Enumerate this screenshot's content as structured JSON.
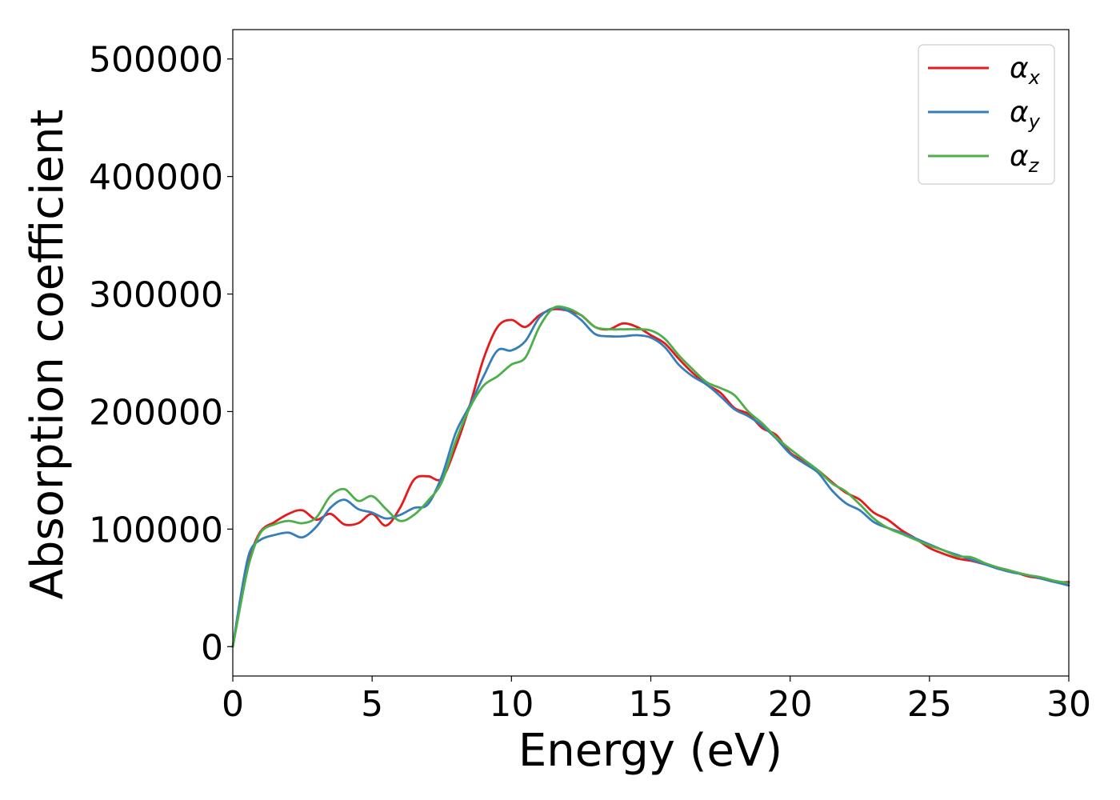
{
  "chart_data": {
    "type": "line",
    "title": "",
    "xlabel": "Energy (eV)",
    "ylabel": "Absorption coefficient",
    "xlim": [
      0,
      30
    ],
    "ylim": [
      -25000,
      525000
    ],
    "xticks": [
      0,
      5,
      10,
      15,
      20,
      25,
      30
    ],
    "yticks": [
      0,
      100000,
      200000,
      300000,
      400000,
      500000
    ],
    "xtick_labels": [
      "0",
      "5",
      "10",
      "15",
      "20",
      "25",
      "30"
    ],
    "ytick_labels": [
      "0",
      "100000",
      "200000",
      "300000",
      "400000",
      "500000"
    ],
    "grid": false,
    "legend_position": "top-right",
    "series": [
      {
        "name_base": "α",
        "name_sub": "x",
        "color": "#e41a1c",
        "x": [
          0,
          0.3,
          0.6,
          1.0,
          1.5,
          2.0,
          2.5,
          3.0,
          3.5,
          4.0,
          4.5,
          5.0,
          5.5,
          6.0,
          6.5,
          7.0,
          7.5,
          8.0,
          8.5,
          9.0,
          9.5,
          10.0,
          10.5,
          11.0,
          11.5,
          12.0,
          12.5,
          13.0,
          13.5,
          14.0,
          14.5,
          15.0,
          15.5,
          16.0,
          16.5,
          17.0,
          17.5,
          18.0,
          18.5,
          19.0,
          19.5,
          20.0,
          20.5,
          21.0,
          21.5,
          22.0,
          22.5,
          23.0,
          23.5,
          24.0,
          24.5,
          25.0,
          25.5,
          26.0,
          26.5,
          27.0,
          27.5,
          28.0,
          28.5,
          29.0,
          29.5,
          30.0
        ],
        "values": [
          0,
          40000,
          75000,
          98000,
          106000,
          113000,
          116000,
          108000,
          113000,
          104000,
          105000,
          113000,
          103000,
          118000,
          142000,
          145000,
          143000,
          170000,
          205000,
          245000,
          272000,
          278000,
          272000,
          282000,
          287000,
          286000,
          282000,
          272000,
          270000,
          275000,
          272000,
          265000,
          258000,
          245000,
          233000,
          223000,
          216000,
          203000,
          198000,
          186000,
          180000,
          165000,
          158000,
          150000,
          140000,
          131000,
          125000,
          114000,
          108000,
          99000,
          92000,
          84000,
          79000,
          75000,
          73000,
          70000,
          67000,
          64000,
          60000,
          58000,
          55000,
          55000
        ]
      },
      {
        "name_base": "α",
        "name_sub": "y",
        "color": "#377eb8",
        "x": [
          0,
          0.3,
          0.6,
          1.0,
          1.5,
          2.0,
          2.5,
          3.0,
          3.5,
          4.0,
          4.5,
          5.0,
          5.5,
          6.0,
          6.5,
          7.0,
          7.5,
          8.0,
          8.5,
          9.0,
          9.5,
          10.0,
          10.5,
          11.0,
          11.5,
          12.0,
          12.5,
          13.0,
          13.5,
          14.0,
          14.5,
          15.0,
          15.5,
          16.0,
          16.5,
          17.0,
          17.5,
          18.0,
          18.5,
          19.0,
          19.5,
          20.0,
          20.5,
          21.0,
          21.5,
          22.0,
          22.5,
          23.0,
          23.5,
          24.0,
          24.5,
          25.0,
          25.5,
          26.0,
          26.5,
          27.0,
          27.5,
          28.0,
          28.5,
          29.0,
          29.5,
          30.0
        ],
        "values": [
          0,
          45000,
          80000,
          91000,
          95000,
          97000,
          93000,
          102000,
          118000,
          125000,
          117000,
          114000,
          109000,
          112000,
          118000,
          121000,
          145000,
          182000,
          205000,
          230000,
          252000,
          252000,
          260000,
          280000,
          288000,
          286000,
          278000,
          266000,
          264000,
          264000,
          265000,
          263000,
          255000,
          240000,
          230000,
          223000,
          213000,
          202000,
          196000,
          188000,
          177000,
          164000,
          156000,
          148000,
          133000,
          122000,
          116000,
          106000,
          101000,
          97000,
          92000,
          87000,
          82000,
          78000,
          74000,
          70000,
          66000,
          63000,
          61000,
          58000,
          55000,
          52000
        ]
      },
      {
        "name_base": "α",
        "name_sub": "z",
        "color": "#4daf4a",
        "x": [
          0,
          0.3,
          0.6,
          1.0,
          1.5,
          2.0,
          2.5,
          3.0,
          3.5,
          4.0,
          4.5,
          5.0,
          5.5,
          6.0,
          6.5,
          7.0,
          7.5,
          8.0,
          8.5,
          9.0,
          9.5,
          10.0,
          10.5,
          11.0,
          11.5,
          12.0,
          12.5,
          13.0,
          13.5,
          14.0,
          14.5,
          15.0,
          15.5,
          16.0,
          16.5,
          17.0,
          17.5,
          18.0,
          18.5,
          19.0,
          19.5,
          20.0,
          20.5,
          21.0,
          21.5,
          22.0,
          22.5,
          23.0,
          23.5,
          24.0,
          24.5,
          25.0,
          25.5,
          26.0,
          26.5,
          27.0,
          27.5,
          28.0,
          28.5,
          29.0,
          29.5,
          30.0
        ],
        "values": [
          0,
          38000,
          72000,
          97000,
          104000,
          107000,
          105000,
          110000,
          128000,
          134000,
          124000,
          128000,
          117000,
          107000,
          112000,
          124000,
          140000,
          175000,
          203000,
          222000,
          230000,
          240000,
          246000,
          272000,
          288000,
          288000,
          282000,
          272000,
          270000,
          270000,
          270000,
          269000,
          262000,
          248000,
          236000,
          225000,
          220000,
          214000,
          200000,
          190000,
          178000,
          168000,
          159000,
          150000,
          139000,
          132000,
          121000,
          109000,
          101000,
          96000,
          91000,
          86000,
          82000,
          77000,
          76000,
          71000,
          67000,
          64000,
          61000,
          59000,
          56000,
          54000
        ]
      }
    ]
  }
}
